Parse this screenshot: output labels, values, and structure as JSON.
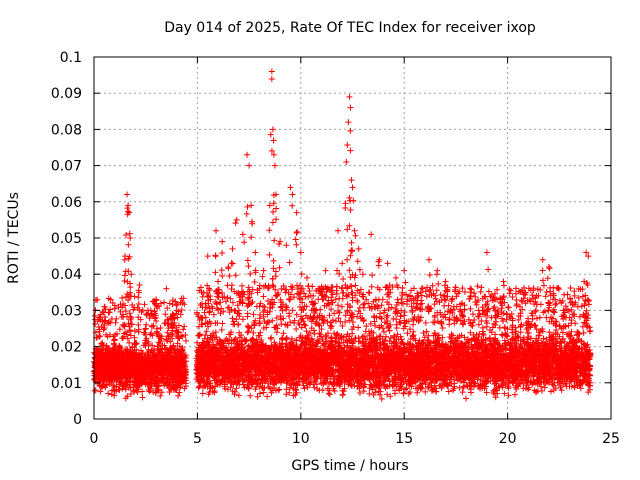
{
  "chart_data": {
    "type": "scatter",
    "title": "Day 014 of 2025, Rate Of TEC Index for receiver ixop",
    "xlabel": "GPS time / hours",
    "ylabel": "ROTI / TECUs",
    "xlim": [
      0,
      25
    ],
    "ylim": [
      0,
      0.1
    ],
    "xticks": [
      0,
      5,
      10,
      15,
      20,
      25
    ],
    "xtick_labels": [
      "0",
      "5",
      "10",
      "15",
      "20",
      "25"
    ],
    "yticks": [
      0,
      0.01,
      0.02,
      0.03,
      0.04,
      0.05,
      0.06,
      0.07,
      0.08,
      0.09,
      0.1
    ],
    "ytick_labels": [
      "0",
      "0.01",
      "0.02",
      "0.03",
      "0.04",
      "0.05",
      "0.06",
      "0.07",
      "0.08",
      "0.09",
      "0.1"
    ],
    "grid": true,
    "marker": "+",
    "color": "#ff0000",
    "data_gap_hours": [
      4.45,
      4.95
    ],
    "series": [
      {
        "name": "ROTI",
        "points": [
          [
            0.1,
            0.013
          ],
          [
            0.2,
            0.018
          ],
          [
            0.3,
            0.028
          ],
          [
            0.4,
            0.021
          ],
          [
            0.5,
            0.031
          ],
          [
            0.6,
            0.011
          ],
          [
            0.8,
            0.016
          ],
          [
            1.0,
            0.022
          ],
          [
            1.2,
            0.019
          ],
          [
            1.4,
            0.026
          ],
          [
            1.5,
            0.045
          ],
          [
            1.6,
            0.062
          ],
          [
            1.65,
            0.059
          ],
          [
            1.7,
            0.057
          ],
          [
            1.75,
            0.05
          ],
          [
            1.8,
            0.04
          ],
          [
            2.0,
            0.021
          ],
          [
            2.2,
            0.037
          ],
          [
            2.5,
            0.025
          ],
          [
            2.8,
            0.029
          ],
          [
            3.0,
            0.033
          ],
          [
            3.2,
            0.023
          ],
          [
            3.5,
            0.036
          ],
          [
            3.7,
            0.019
          ],
          [
            3.8,
            0.029
          ],
          [
            4.0,
            0.03
          ],
          [
            4.1,
            0.024
          ],
          [
            4.3,
            0.016
          ],
          [
            5.1,
            0.014
          ],
          [
            5.3,
            0.021
          ],
          [
            5.5,
            0.045
          ],
          [
            5.7,
            0.031
          ],
          [
            5.9,
            0.052
          ],
          [
            6.0,
            0.038
          ],
          [
            6.2,
            0.049
          ],
          [
            6.5,
            0.042
          ],
          [
            6.7,
            0.047
          ],
          [
            6.9,
            0.055
          ],
          [
            7.0,
            0.03
          ],
          [
            7.2,
            0.051
          ],
          [
            7.4,
            0.073
          ],
          [
            7.5,
            0.07
          ],
          [
            7.6,
            0.059
          ],
          [
            7.8,
            0.046
          ],
          [
            8.0,
            0.036
          ],
          [
            8.2,
            0.041
          ],
          [
            8.5,
            0.059
          ],
          [
            8.6,
            0.096
          ],
          [
            8.65,
            0.08
          ],
          [
            8.7,
            0.073
          ],
          [
            8.75,
            0.07
          ],
          [
            8.8,
            0.062
          ],
          [
            9.0,
            0.049
          ],
          [
            9.3,
            0.048
          ],
          [
            9.5,
            0.064
          ],
          [
            9.6,
            0.062
          ],
          [
            9.8,
            0.057
          ],
          [
            10.0,
            0.046
          ],
          [
            10.3,
            0.039
          ],
          [
            10.6,
            0.034
          ],
          [
            10.9,
            0.036
          ],
          [
            11.2,
            0.041
          ],
          [
            11.5,
            0.035
          ],
          [
            11.8,
            0.052
          ],
          [
            12.0,
            0.043
          ],
          [
            12.2,
            0.071
          ],
          [
            12.3,
            0.082
          ],
          [
            12.35,
            0.089
          ],
          [
            12.4,
            0.086
          ],
          [
            12.45,
            0.066
          ],
          [
            12.5,
            0.064
          ],
          [
            12.6,
            0.052
          ],
          [
            12.8,
            0.047
          ],
          [
            13.0,
            0.04
          ],
          [
            13.4,
            0.051
          ],
          [
            13.8,
            0.044
          ],
          [
            14.2,
            0.043
          ],
          [
            14.6,
            0.039
          ],
          [
            15.0,
            0.041
          ],
          [
            15.4,
            0.03
          ],
          [
            15.8,
            0.035
          ],
          [
            16.2,
            0.044
          ],
          [
            16.6,
            0.041
          ],
          [
            17.0,
            0.038
          ],
          [
            17.4,
            0.031
          ],
          [
            17.8,
            0.032
          ],
          [
            18.2,
            0.035
          ],
          [
            18.6,
            0.03
          ],
          [
            19.0,
            0.046
          ],
          [
            19.4,
            0.033
          ],
          [
            19.8,
            0.038
          ],
          [
            20.2,
            0.029
          ],
          [
            20.6,
            0.031
          ],
          [
            21.0,
            0.026
          ],
          [
            21.4,
            0.034
          ],
          [
            21.7,
            0.044
          ],
          [
            22.0,
            0.042
          ],
          [
            22.3,
            0.033
          ],
          [
            22.7,
            0.03
          ],
          [
            23.0,
            0.028
          ],
          [
            23.4,
            0.031
          ],
          [
            23.7,
            0.038
          ],
          [
            23.8,
            0.046
          ],
          [
            23.9,
            0.045
          ]
        ]
      }
    ],
    "dense_band": {
      "description": "dense background band of points",
      "segments": [
        {
          "x_start": 0.0,
          "x_end": 4.45,
          "y_min": 0.005,
          "y_max": 0.022
        },
        {
          "x_start": 4.95,
          "x_end": 24.0,
          "y_min": 0.005,
          "y_max": 0.025
        }
      ]
    }
  }
}
